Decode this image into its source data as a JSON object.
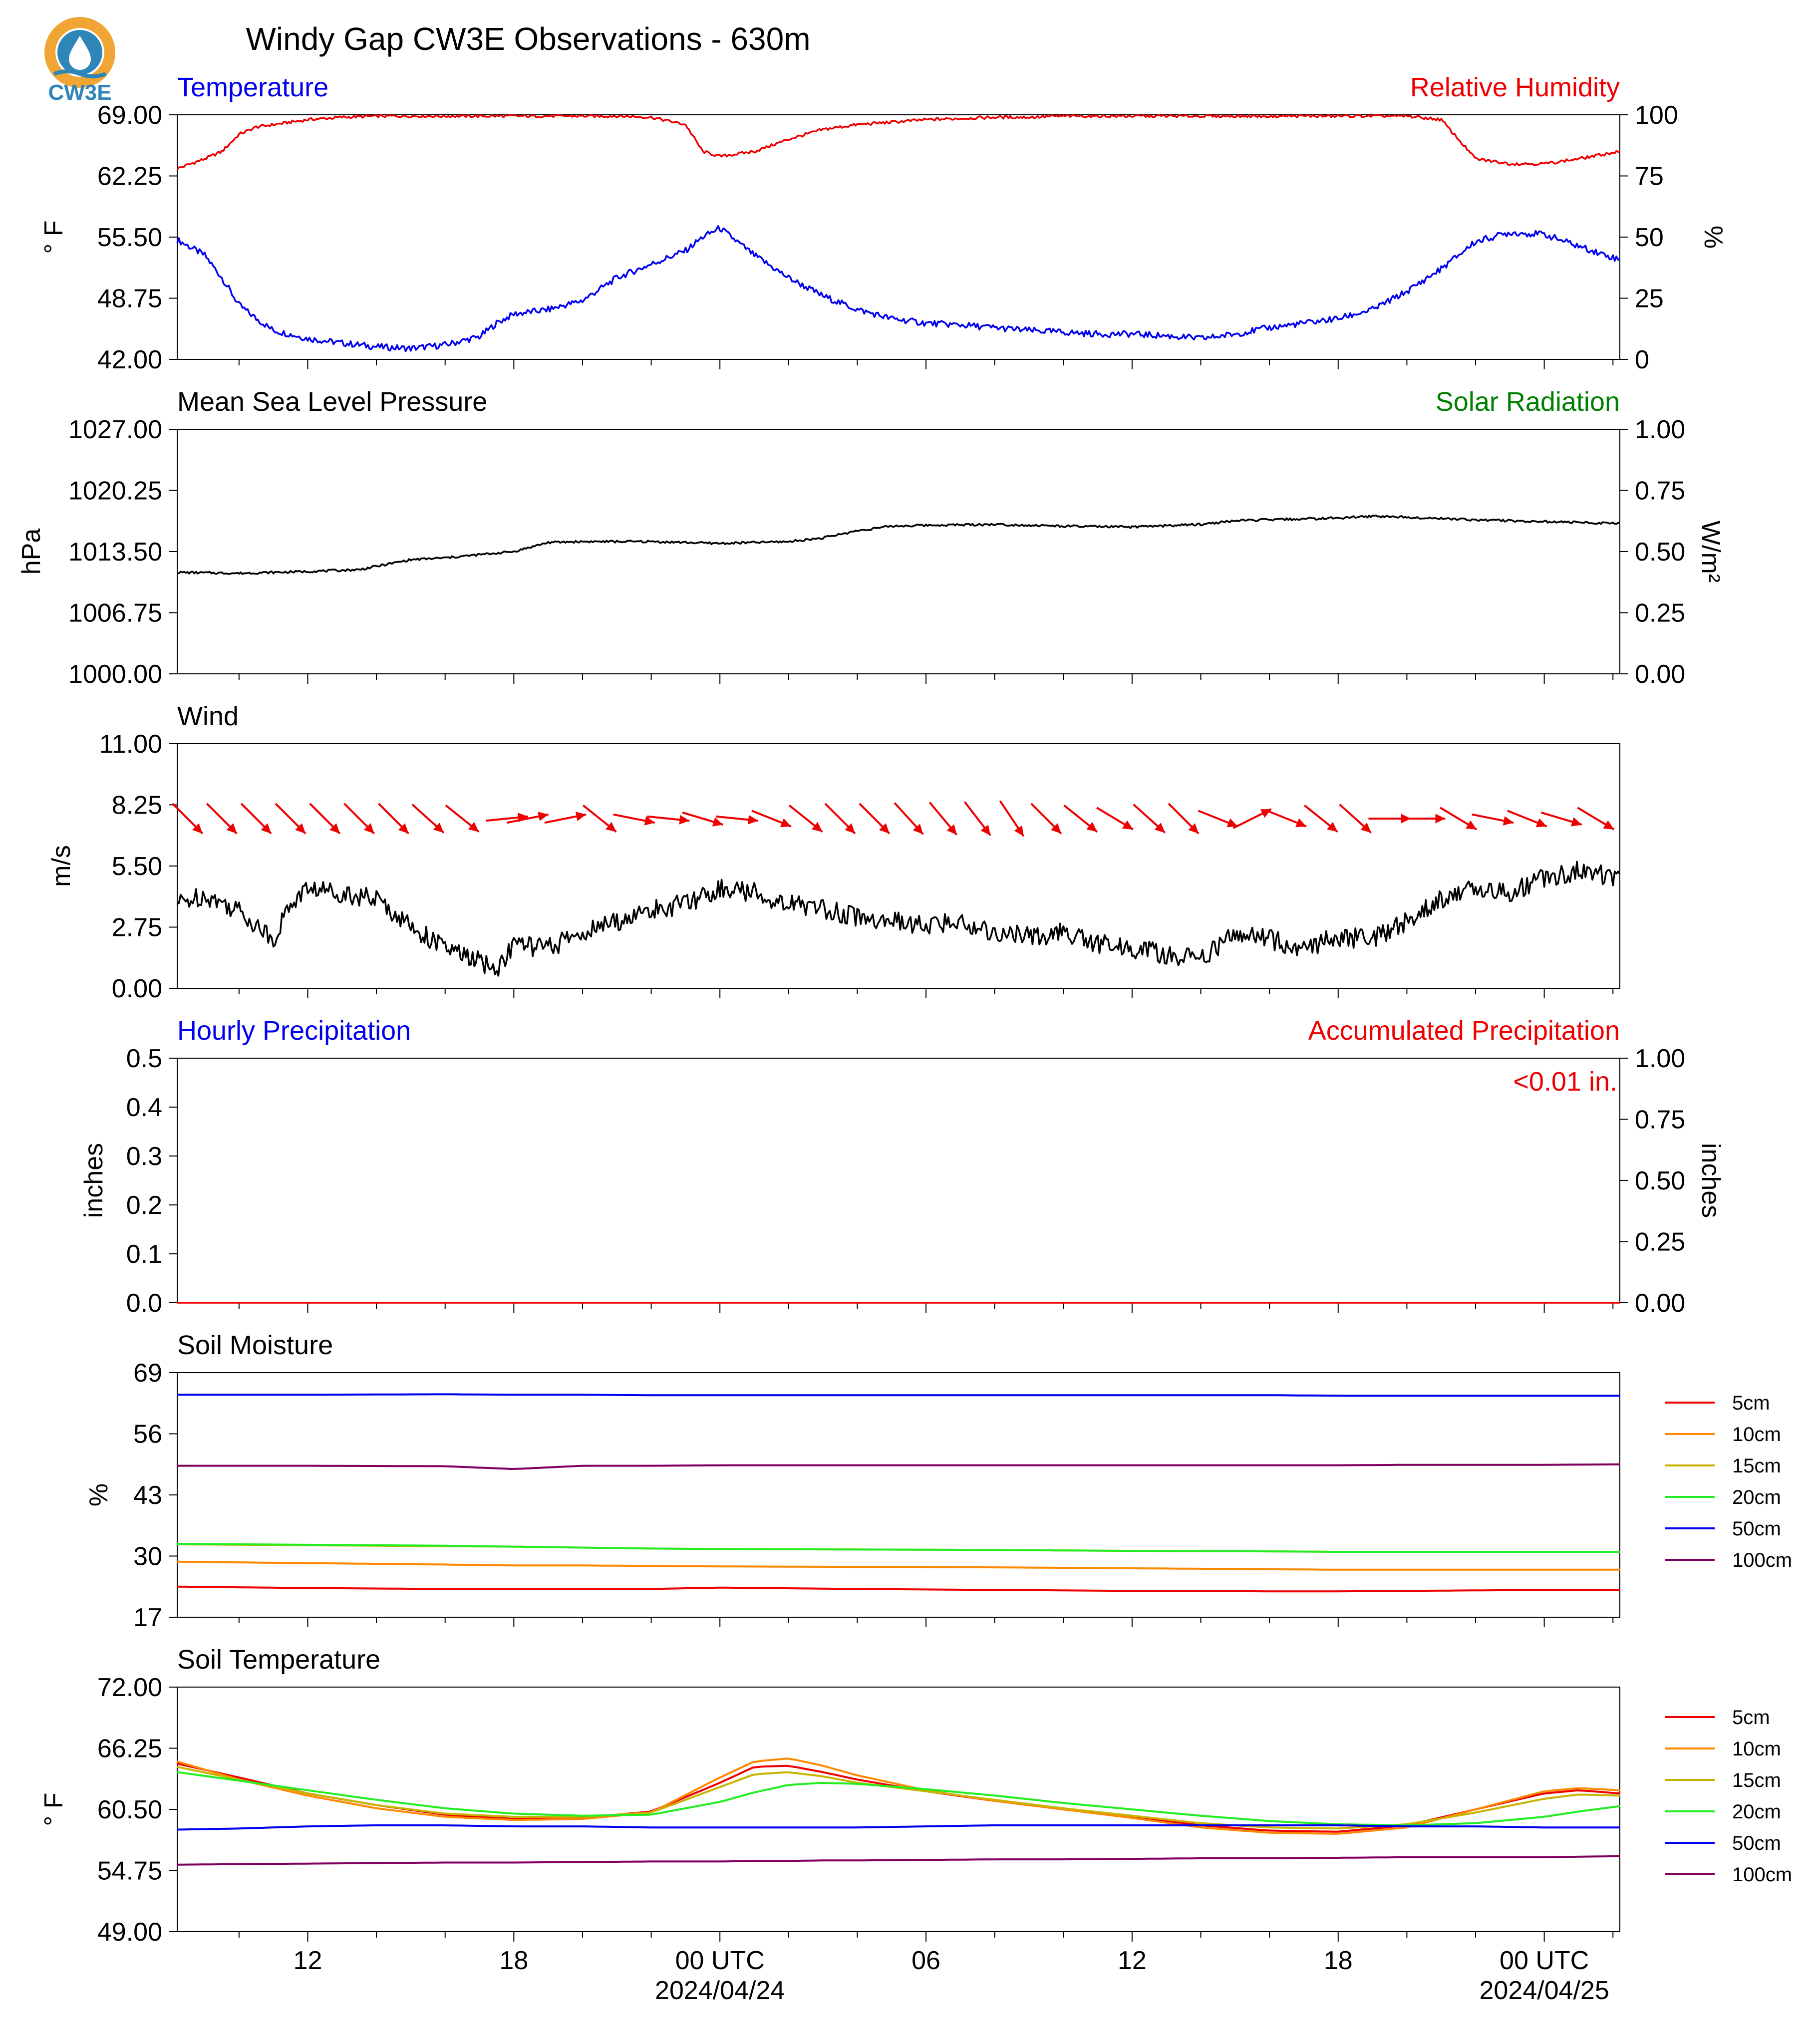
{
  "title": "Windy Gap CW3E Observations - 630m",
  "logo": {
    "text": "CW3E",
    "icon": "cw3e-logo-icon",
    "colors": {
      "ring": "#f0a535",
      "drop": "#2e86b8",
      "text": "#2e86b8"
    }
  },
  "colors": {
    "blue": "#0000ee",
    "red": "#ee0000",
    "black": "#000000",
    "green": "#008000",
    "orange": "#ff8800",
    "olive": "#c8b400",
    "lime": "#22ee22",
    "purple": "#800060"
  },
  "x_axis": {
    "range_hours": [
      -15.8,
      26.2
    ],
    "major_ticks": [
      {
        "hour": -12,
        "label": "12",
        "sublabel": ""
      },
      {
        "hour": -6,
        "label": "18",
        "sublabel": ""
      },
      {
        "hour": 0,
        "label": "00 UTC",
        "sublabel": "2024/04/24"
      },
      {
        "hour": 6,
        "label": "06",
        "sublabel": ""
      },
      {
        "hour": 12,
        "label": "12",
        "sublabel": ""
      },
      {
        "hour": 18,
        "label": "18",
        "sublabel": ""
      },
      {
        "hour": 24,
        "label": "00 UTC",
        "sublabel": "2024/04/25"
      }
    ]
  },
  "chart_data": [
    {
      "type": "line",
      "title": "Temperature",
      "title_right": "Relative Humidity",
      "ylabel": "° F",
      "ylabel_right": "%",
      "ylim": [
        42,
        69
      ],
      "yticks": [
        "69.00",
        "62.25",
        "55.50",
        "48.75",
        "42.00"
      ],
      "ylim_right": [
        0,
        100
      ],
      "yticks_right": [
        "100",
        "75",
        "50",
        "25",
        "0"
      ],
      "x": [
        -15.8,
        -15,
        -14.5,
        -14,
        -13.5,
        -13,
        -12,
        -11,
        -10,
        -9,
        -8,
        -7,
        -6.5,
        -6,
        -5,
        -4,
        -3,
        -2,
        -1,
        -0.5,
        0,
        1,
        2,
        3,
        4,
        5,
        6,
        7,
        8,
        9,
        10,
        11,
        12,
        13,
        14,
        15,
        16,
        17,
        18,
        19,
        20,
        21,
        22,
        23,
        24,
        25,
        26.2
      ],
      "series": [
        {
          "name": "Temperature",
          "axis": "left",
          "color": "#0000ee",
          "values": [
            55.2,
            53.5,
            51,
            48,
            46.5,
            45.2,
            44.3,
            43.8,
            43.4,
            43.2,
            43.6,
            44.5,
            46,
            47,
            47.5,
            48.5,
            51,
            52.5,
            54,
            55.5,
            56.5,
            53.5,
            51,
            49,
            47.5,
            46.5,
            46,
            45.8,
            45.5,
            45.2,
            45,
            44.8,
            44.8,
            44.6,
            44.3,
            44.8,
            45.5,
            46,
            46.5,
            47.5,
            49.5,
            52,
            55,
            56,
            55.8,
            54.5,
            53
          ]
        },
        {
          "name": "Relative Humidity",
          "axis": "right",
          "color": "#ee0000",
          "values": [
            78,
            82,
            85,
            92,
            95,
            96,
            98,
            99,
            99.5,
            99.5,
            99.5,
            99.5,
            99.5,
            99.5,
            99.5,
            99.5,
            99.5,
            99,
            96,
            85,
            83,
            85,
            90,
            94,
            96,
            97,
            98,
            98.5,
            99,
            99,
            99.5,
            99.5,
            99.5,
            99.5,
            99.5,
            99.5,
            99.5,
            99.5,
            99.5,
            99.5,
            99.5,
            98,
            82,
            80,
            80,
            82,
            85
          ]
        }
      ]
    },
    {
      "type": "line",
      "title": "Mean Sea Level Pressure",
      "title_right": "Solar Radiation",
      "ylabel": "hPa",
      "ylabel_right": "W/m²",
      "ylim": [
        1000,
        1027
      ],
      "yticks": [
        "1027.00",
        "1020.25",
        "1013.50",
        "1006.75",
        "1000.00"
      ],
      "ylim_right": [
        0,
        1
      ],
      "yticks_right": [
        "1.00",
        "0.75",
        "0.50",
        "0.25",
        "0.00"
      ],
      "x": [
        -15.8,
        -14,
        -12,
        -10.5,
        -9,
        -8,
        -6,
        -5,
        -4,
        -2,
        0,
        2,
        3,
        4,
        5,
        6,
        8,
        10,
        12,
        14,
        15,
        16,
        18,
        19,
        20,
        22,
        24,
        26.2
      ],
      "series": [
        {
          "name": "Mean Sea Level Pressure",
          "axis": "left",
          "color": "#000000",
          "values": [
            1011.2,
            1011.1,
            1011.3,
            1011.5,
            1012.6,
            1012.8,
            1013.5,
            1014.5,
            1014.6,
            1014.6,
            1014.4,
            1014.6,
            1015.0,
            1015.8,
            1016.3,
            1016.4,
            1016.5,
            1016.3,
            1016.2,
            1016.5,
            1016.9,
            1017.0,
            1017.2,
            1017.4,
            1017.3,
            1017.0,
            1016.8,
            1016.6
          ]
        }
      ]
    },
    {
      "type": "line",
      "title": "Wind",
      "ylabel": "m/s",
      "ylim": [
        0,
        11
      ],
      "yticks": [
        "11.00",
        "8.25",
        "5.50",
        "2.75",
        "0.00"
      ],
      "x": [
        -15.8,
        -15,
        -14,
        -13,
        -12.5,
        -12,
        -11,
        -10,
        -9,
        -8,
        -7,
        -6.5,
        -6,
        -5,
        -4,
        -3,
        -2,
        -1,
        0,
        1,
        2,
        3,
        4,
        5,
        6,
        7,
        8,
        9,
        10,
        11,
        12,
        13,
        14,
        15,
        16,
        17,
        18,
        19,
        20,
        21,
        22,
        23,
        24,
        25,
        26.2
      ],
      "series": [
        {
          "name": "Wind Speed",
          "axis": "left",
          "color": "#000000",
          "values": [
            3.8,
            4.2,
            3.5,
            2.2,
            3.8,
            4.5,
            4.3,
            4.0,
            2.8,
            1.8,
            1.2,
            0.8,
            2.0,
            1.8,
            2.5,
            3.0,
            3.5,
            3.8,
            4.5,
            4.3,
            3.8,
            3.6,
            3.2,
            3.0,
            2.8,
            3.0,
            2.5,
            2.3,
            2.5,
            2.0,
            1.8,
            1.5,
            1.3,
            2.5,
            2.2,
            1.8,
            2.3,
            2.2,
            3.0,
            4.0,
            4.5,
            4.3,
            5.0,
            5.3,
            5.0
          ]
        }
      ],
      "wind_barbs": {
        "hour": [
          -15.5,
          -14.5,
          -13.5,
          -12.5,
          -11.5,
          -10.5,
          -9.5,
          -8.5,
          -7.5,
          -6.2,
          -5.6,
          -4.5,
          -3.5,
          -2.5,
          -1.5,
          -0.5,
          0.5,
          1.5,
          2.5,
          3.5,
          4.5,
          5.5,
          6.5,
          7.5,
          8.5,
          9.5,
          10.5,
          11.5,
          12.5,
          13.5,
          14.5,
          15.5,
          16.5,
          17.5,
          18.5,
          19.5,
          20.5,
          21.5,
          22.5,
          23.5,
          24.5,
          25.5
        ],
        "u": [
          1.0,
          1.0,
          1.0,
          1.0,
          1.0,
          1.0,
          1.0,
          1.0,
          1.0,
          1.0,
          1.0,
          1.0,
          1.0,
          1.0,
          1.0,
          1.0,
          1.0,
          1.0,
          1.0,
          1.0,
          1.0,
          1.0,
          1.0,
          1.0,
          1.0,
          1.0,
          1.0,
          1.0,
          1.0,
          1.0,
          1.0,
          1.0,
          1.0,
          1.0,
          1.0,
          1.0,
          1.0,
          1.0,
          1.0,
          1.0,
          1.0,
          1.0
        ],
        "v": [
          -1.0,
          -1.0,
          -1.0,
          -1.0,
          -1.0,
          -1.0,
          -1.0,
          -0.9,
          -0.8,
          0.1,
          0.2,
          0.2,
          -0.8,
          -0.2,
          -0.1,
          -0.3,
          -0.1,
          -0.4,
          -0.8,
          -1.0,
          -1.0,
          -1.1,
          -1.2,
          -1.3,
          -1.5,
          -1.0,
          -0.8,
          -0.6,
          -0.9,
          -1.0,
          -0.4,
          0.5,
          -0.4,
          -0.8,
          -0.9,
          0.0,
          0.0,
          -0.6,
          -0.2,
          -0.4,
          -0.3,
          -0.6
        ]
      }
    },
    {
      "type": "bar",
      "title": "Hourly Precipitation",
      "title_right": "Accumulated Precipitation",
      "annotation": "<0.01 in.",
      "ylabel": "inches",
      "ylabel_right": "inches",
      "ylim": [
        0,
        0.5
      ],
      "yticks": [
        "0.5",
        "0.4",
        "0.3",
        "0.2",
        "0.1",
        "0.0"
      ],
      "ylim_right": [
        0,
        1
      ],
      "yticks_right": [
        "1.00",
        "0.75",
        "0.50",
        "0.25",
        "0.00"
      ],
      "series": [
        {
          "name": "Hourly Precipitation",
          "axis": "left",
          "color": "#0000ee",
          "values": []
        },
        {
          "name": "Accumulated Precipitation",
          "axis": "right",
          "color": "#ee0000",
          "x": [
            -15.8,
            26.2
          ],
          "values": [
            0,
            0
          ]
        }
      ]
    },
    {
      "type": "line",
      "title": "Soil Moisture",
      "ylabel": "%",
      "ylim": [
        17,
        69
      ],
      "yticks": [
        "69",
        "56",
        "43",
        "30",
        "17"
      ],
      "x": [
        -15.8,
        -12,
        -8,
        -6,
        -4,
        -2,
        0,
        4,
        8,
        12,
        16,
        18,
        20,
        24,
        26.2
      ],
      "legend": "right",
      "series": [
        {
          "name": "5cm",
          "color": "#ee0000",
          "values": [
            23.5,
            23.2,
            23.0,
            23.0,
            23.0,
            23.0,
            23.3,
            23.0,
            22.8,
            22.6,
            22.5,
            22.5,
            22.6,
            22.8,
            22.8
          ]
        },
        {
          "name": "10cm",
          "color": "#ff8800",
          "values": [
            28.8,
            28.5,
            28.2,
            28.0,
            28.0,
            27.9,
            27.8,
            27.7,
            27.6,
            27.4,
            27.2,
            27.1,
            27.1,
            27.1,
            27.1
          ]
        },
        {
          "name": "15cm",
          "color": "#c8b400",
          "values": [
            32.5,
            32.3,
            32.1,
            32.0,
            31.8,
            31.6,
            31.5,
            31.4,
            31.3,
            31.1,
            31.0,
            30.9,
            30.9,
            30.9,
            30.9
          ]
        },
        {
          "name": "20cm",
          "color": "#22ee22",
          "values": [
            32.6,
            32.4,
            32.2,
            32.0,
            31.8,
            31.6,
            31.5,
            31.4,
            31.3,
            31.1,
            31.0,
            30.9,
            30.9,
            30.9,
            30.9
          ]
        },
        {
          "name": "50cm",
          "color": "#0000ee",
          "values": [
            64.3,
            64.3,
            64.4,
            64.3,
            64.3,
            64.2,
            64.2,
            64.2,
            64.2,
            64.2,
            64.2,
            64.1,
            64.1,
            64.1,
            64.1
          ]
        },
        {
          "name": "100cm",
          "color": "#800060",
          "values": [
            49.2,
            49.2,
            49.1,
            48.5,
            49.2,
            49.2,
            49.3,
            49.3,
            49.3,
            49.3,
            49.3,
            49.3,
            49.4,
            49.4,
            49.5
          ]
        }
      ]
    },
    {
      "type": "line",
      "title": "Soil Temperature",
      "ylabel": "° F",
      "ylim": [
        49,
        72
      ],
      "yticks": [
        "72.00",
        "66.25",
        "60.50",
        "54.75",
        "49.00"
      ],
      "x": [
        -15.8,
        -14,
        -12,
        -10,
        -8,
        -6,
        -4,
        -2,
        0,
        1,
        2,
        3,
        4,
        6,
        8,
        10,
        12,
        14,
        16,
        18,
        20,
        22,
        24,
        25,
        26.2
      ],
      "legend": "right",
      "series": [
        {
          "name": "5cm",
          "color": "#ee0000",
          "values": [
            64.8,
            63.5,
            62.0,
            60.9,
            60.0,
            59.6,
            59.7,
            60.3,
            63.0,
            64.5,
            64.6,
            64.0,
            63.3,
            62.2,
            61.3,
            60.5,
            59.8,
            59.0,
            58.5,
            58.4,
            59.0,
            60.5,
            62.0,
            62.3,
            62.0
          ]
        },
        {
          "name": "10cm",
          "color": "#ff8800",
          "values": [
            65.0,
            63.3,
            61.8,
            60.6,
            59.8,
            59.5,
            59.6,
            60.2,
            63.5,
            65.0,
            65.3,
            64.6,
            63.7,
            62.3,
            61.3,
            60.5,
            59.7,
            58.8,
            58.3,
            58.2,
            58.8,
            60.5,
            62.2,
            62.5,
            62.3
          ]
        },
        {
          "name": "15cm",
          "color": "#c8b400",
          "values": [
            64.5,
            63.3,
            62.0,
            60.9,
            60.1,
            59.8,
            59.8,
            60.2,
            62.6,
            63.8,
            64.0,
            63.6,
            63.0,
            62.2,
            61.4,
            60.6,
            59.9,
            59.2,
            58.8,
            58.7,
            59.1,
            60.2,
            61.5,
            61.9,
            61.8
          ]
        },
        {
          "name": "20cm",
          "color": "#22ee22",
          "values": [
            64.0,
            63.2,
            62.3,
            61.4,
            60.6,
            60.1,
            59.9,
            60.0,
            61.2,
            62.1,
            62.8,
            63.0,
            62.9,
            62.4,
            61.8,
            61.1,
            60.5,
            59.9,
            59.4,
            59.1,
            59.0,
            59.2,
            59.8,
            60.3,
            60.8
          ]
        },
        {
          "name": "50cm",
          "color": "#0000ee",
          "values": [
            58.6,
            58.7,
            58.9,
            59.0,
            59.0,
            58.9,
            58.9,
            58.8,
            58.8,
            58.8,
            58.8,
            58.8,
            58.8,
            58.9,
            59.0,
            59.0,
            59.0,
            59.0,
            59.0,
            59.0,
            58.9,
            58.9,
            58.8,
            58.8,
            58.8
          ]
        },
        {
          "name": "100cm",
          "color": "#800060",
          "values": [
            55.3,
            55.35,
            55.4,
            55.45,
            55.5,
            55.5,
            55.55,
            55.6,
            55.6,
            55.65,
            55.65,
            55.7,
            55.7,
            55.75,
            55.8,
            55.8,
            55.85,
            55.9,
            55.9,
            55.95,
            56.0,
            56.0,
            56.0,
            56.05,
            56.1
          ]
        }
      ]
    }
  ]
}
